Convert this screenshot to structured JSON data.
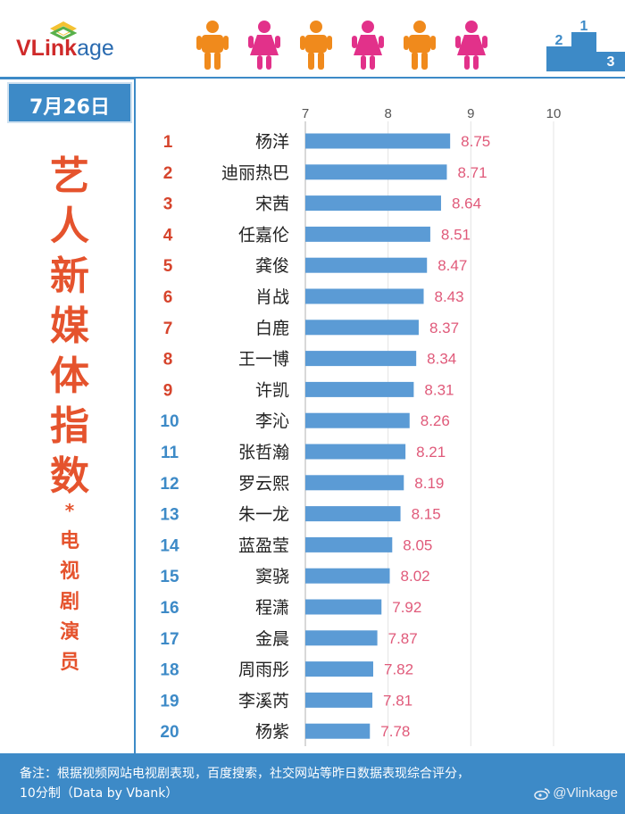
{
  "brand": {
    "logo_text_v": "VL",
    "logo_text_link": "ink",
    "logo_text_age": "age"
  },
  "date": "7月26日",
  "side_title": {
    "main": [
      "艺",
      "人",
      "新",
      "媒",
      "体",
      "指",
      "数"
    ],
    "star": "*",
    "sub": [
      "电",
      "视",
      "剧",
      "演",
      "员"
    ]
  },
  "footer": {
    "note_line1": "备注：根据视频网站电视剧表现，百度搜索，社交网站等昨日数据表现综合评分，",
    "note_line2": "10分制（Data by Vbank）",
    "watermark": "@Vlinkage"
  },
  "colors": {
    "bar": "#5b9bd5",
    "value": "#e05a7a",
    "rank": "#d6442c",
    "accent": "#3d8ac7",
    "title": "#e5532d"
  },
  "icons": [
    "vlinkage-logo-icon",
    "male-person-icon",
    "female-person-icon",
    "podium-icon",
    "weibo-icon"
  ],
  "chart_data": {
    "type": "bar",
    "orientation": "horizontal",
    "xlim": [
      7,
      10
    ],
    "xticks": [
      "7",
      "8",
      "9",
      "10"
    ],
    "ranks": [
      "1",
      "2",
      "3",
      "4",
      "5",
      "6",
      "7",
      "8",
      "9",
      "10",
      "11",
      "12",
      "13",
      "14",
      "15",
      "16",
      "17",
      "18",
      "19",
      "20"
    ],
    "categories": [
      "杨洋",
      "迪丽热巴",
      "宋茜",
      "任嘉伦",
      "龚俊",
      "肖战",
      "白鹿",
      "王一博",
      "许凯",
      "李沁",
      "张哲瀚",
      "罗云熙",
      "朱一龙",
      "蓝盈莹",
      "窦骁",
      "程潇",
      "金晨",
      "周雨彤",
      "李溪芮",
      "杨紫"
    ],
    "values": [
      8.75,
      8.71,
      8.64,
      8.51,
      8.47,
      8.43,
      8.37,
      8.34,
      8.31,
      8.26,
      8.21,
      8.19,
      8.15,
      8.05,
      8.02,
      7.92,
      7.87,
      7.82,
      7.81,
      7.78
    ],
    "value_labels": [
      "8.75",
      "8.71",
      "8.64",
      "8.51",
      "8.47",
      "8.43",
      "8.37",
      "8.34",
      "8.31",
      "8.26",
      "8.21",
      "8.19",
      "8.15",
      "8.05",
      "8.02",
      "7.92",
      "7.87",
      "7.82",
      "7.81",
      "7.78"
    ],
    "grid": true,
    "legend": false
  }
}
